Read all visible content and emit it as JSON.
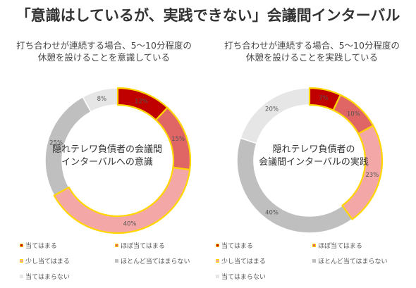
{
  "title": "「意識はしているが、実践できない」会議間インターバル",
  "colors": {
    "highlight_stroke": "#FFD600",
    "divider_stroke": "#ffffff"
  },
  "legend": [
    {
      "label": "当てはまる",
      "color": "#C00000"
    },
    {
      "label": "ほぼ当てはまる",
      "color": "#E06666"
    },
    {
      "label": "少し当てはまる",
      "color": "#F4A7A7"
    },
    {
      "label": "ほとんど当てはまらない",
      "color": "#BFBFBF"
    },
    {
      "label": "当てはまらない",
      "color": "#E6E6E6"
    }
  ],
  "chart_data": [
    {
      "type": "pie",
      "subtype": "donut",
      "subtitle_lines": [
        "打ち合わせが連続する場合、5〜10分程度の",
        "休憩を設けることを意識している"
      ],
      "center_lines": [
        "隠れテレワ負債者の会議間",
        "インターバルへの意識"
      ],
      "categories": [
        "当てはまる",
        "ほぼ当てはまる",
        "少し当てはまる",
        "ほとんど当てはまらない",
        "当てはまらない"
      ],
      "values": [
        12,
        15,
        40,
        25,
        8
      ],
      "value_labels": [
        "12%",
        "15%",
        "40%",
        "25%",
        "8%"
      ],
      "highlighted": [
        true,
        true,
        true,
        false,
        false
      ]
    },
    {
      "type": "pie",
      "subtype": "donut",
      "subtitle_lines": [
        "打ち合わせが連続する場合、5〜10分程度の",
        "休憩を設けることを実践している"
      ],
      "center_lines": [
        "隠れテレワ負債者の",
        "会議間インターバルの実践"
      ],
      "categories": [
        "当てはまる",
        "ほぼ当てはまる",
        "少し当てはまる",
        "ほとんど当てはまらない",
        "当てはまらない"
      ],
      "values": [
        7,
        10,
        23,
        40,
        20
      ],
      "value_labels": [
        "7%",
        "10%",
        "23%",
        "40%",
        "20%"
      ],
      "highlighted": [
        true,
        true,
        true,
        false,
        false
      ]
    }
  ]
}
